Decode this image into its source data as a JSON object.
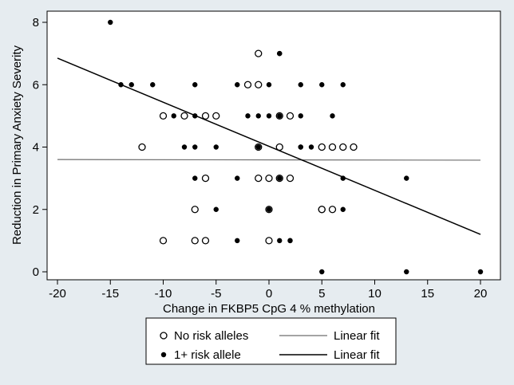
{
  "chart_data": {
    "type": "scatter",
    "title": "",
    "xlabel": "Change in FKBP5 CpG 4 % methylation",
    "ylabel": "Reduction in Primary Anxiety Severity",
    "xlim": [
      -20,
      20
    ],
    "ylim": [
      0,
      8
    ],
    "xticks": [
      -20,
      -15,
      -10,
      -5,
      0,
      5,
      10,
      15,
      20
    ],
    "yticks": [
      0,
      2,
      4,
      6,
      8
    ],
    "grid": false,
    "legend_position": "bottom",
    "series": [
      {
        "name": "No risk alleles",
        "marker": "hollow-circle",
        "color": "#000000",
        "points": [
          [
            -1,
            7
          ],
          [
            -2,
            6
          ],
          [
            -1,
            6
          ],
          [
            -10,
            5
          ],
          [
            -8,
            5
          ],
          [
            -6,
            5
          ],
          [
            -5,
            5
          ],
          [
            1,
            5
          ],
          [
            2,
            5
          ],
          [
            -12,
            4
          ],
          [
            -1,
            4
          ],
          [
            1,
            4
          ],
          [
            5,
            4
          ],
          [
            6,
            4
          ],
          [
            7,
            4
          ],
          [
            8,
            4
          ],
          [
            -6,
            3
          ],
          [
            -1,
            3
          ],
          [
            0,
            3
          ],
          [
            1,
            3
          ],
          [
            2,
            3
          ],
          [
            -7,
            2
          ],
          [
            0,
            2
          ],
          [
            5,
            2
          ],
          [
            5,
            2
          ],
          [
            6,
            2
          ],
          [
            -10,
            1
          ],
          [
            -7,
            1
          ],
          [
            -6,
            1
          ],
          [
            0,
            1
          ]
        ]
      },
      {
        "name": "1+ risk allele",
        "marker": "filled-circle",
        "color": "#000000",
        "points": [
          [
            -15,
            8
          ],
          [
            1,
            7
          ],
          [
            1,
            7
          ],
          [
            -14,
            6
          ],
          [
            -13,
            6
          ],
          [
            -11,
            6
          ],
          [
            -7,
            6
          ],
          [
            -3,
            6
          ],
          [
            0,
            6
          ],
          [
            3,
            6
          ],
          [
            5,
            6
          ],
          [
            7,
            6
          ],
          [
            -9,
            5
          ],
          [
            -7,
            5
          ],
          [
            -2,
            5
          ],
          [
            -1,
            5
          ],
          [
            0,
            5
          ],
          [
            1,
            5
          ],
          [
            3,
            5
          ],
          [
            6,
            5
          ],
          [
            -8,
            4
          ],
          [
            -7,
            4
          ],
          [
            -5,
            4
          ],
          [
            -1,
            4
          ],
          [
            3,
            4
          ],
          [
            3,
            4
          ],
          [
            4,
            4
          ],
          [
            -7,
            3
          ],
          [
            -3,
            3
          ],
          [
            1,
            3
          ],
          [
            7,
            3
          ],
          [
            13,
            3
          ],
          [
            -5,
            2
          ],
          [
            0,
            2
          ],
          [
            7,
            2
          ],
          [
            -3,
            1
          ],
          [
            1,
            1
          ],
          [
            2,
            1
          ],
          [
            2,
            1
          ],
          [
            5,
            0
          ],
          [
            13,
            0
          ],
          [
            20,
            0
          ]
        ]
      }
    ],
    "fit_lines": [
      {
        "name": "Linear fit",
        "series": "No risk alleles",
        "x": [
          -20,
          20
        ],
        "y": [
          3.6,
          3.58
        ],
        "style": "thin-gray"
      },
      {
        "name": "Linear fit",
        "series": "1+ risk allele",
        "x": [
          -20,
          20
        ],
        "y": [
          6.85,
          1.2
        ],
        "style": "dark"
      }
    ]
  }
}
